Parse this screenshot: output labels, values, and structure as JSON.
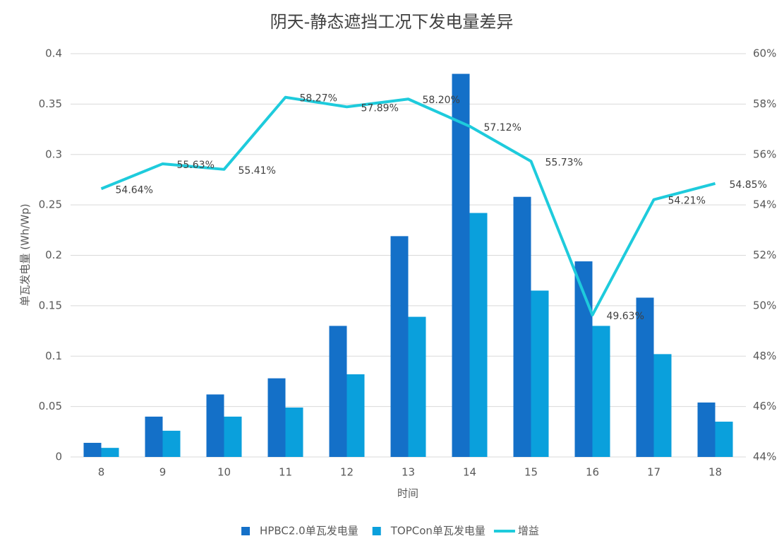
{
  "chart_data": {
    "type": "bar",
    "title": "阴天-静态遮挡工况下发电量差异",
    "x_label": "时间",
    "y_label": "单瓦发电量 (Wh/Wp)",
    "categories": [
      "8",
      "9",
      "10",
      "11",
      "12",
      "13",
      "14",
      "15",
      "16",
      "17",
      "18"
    ],
    "series": [
      {
        "name": "HPBC2.0单瓦发电量",
        "color": "#1470c8",
        "type": "bar",
        "values": [
          0.014,
          0.04,
          0.062,
          0.078,
          0.13,
          0.219,
          0.38,
          0.258,
          0.194,
          0.158,
          0.054
        ]
      },
      {
        "name": "TOPCon单瓦发电量",
        "color": "#0aa0dc",
        "type": "bar",
        "values": [
          0.009,
          0.026,
          0.04,
          0.049,
          0.082,
          0.139,
          0.242,
          0.165,
          0.13,
          0.102,
          0.035
        ]
      },
      {
        "name": "增益",
        "color": "#1ecbdc",
        "type": "line",
        "axis": "y2",
        "values": [
          54.64,
          55.63,
          55.41,
          58.27,
          57.89,
          58.2,
          57.12,
          55.73,
          49.63,
          54.21,
          54.85
        ],
        "value_labels": [
          "54.64%",
          "55.63%",
          "55.41%",
          "58.27%",
          "57.89%",
          "58.20%",
          "57.12%",
          "55.73%",
          "49.63%",
          "54.21%",
          "54.85%"
        ]
      }
    ],
    "ylim": [
      0,
      0.4
    ],
    "yticks": [
      0,
      0.05,
      0.1,
      0.15,
      0.2,
      0.25,
      0.3,
      0.35,
      0.4
    ],
    "y2lim": [
      44,
      60
    ],
    "y2ticks": [
      {
        "value": 44,
        "label": "44%"
      },
      {
        "value": 46,
        "label": "46%"
      },
      {
        "value": 48,
        "label": "48%"
      },
      {
        "value": 50,
        "label": "50%"
      },
      {
        "value": 52,
        "label": "52%"
      },
      {
        "value": 54,
        "label": "54%"
      },
      {
        "value": 56,
        "label": "56%"
      },
      {
        "value": 58,
        "label": "58%"
      },
      {
        "value": 60,
        "label": "60%"
      }
    ],
    "grid": true,
    "legend": "bottom"
  }
}
